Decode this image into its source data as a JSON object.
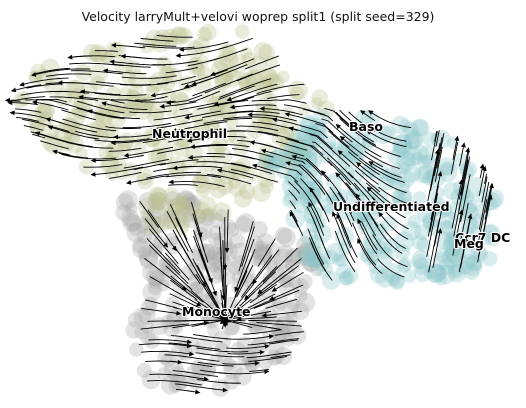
{
  "chart_data": {
    "type": "scatter",
    "title": "Velocity larryMult+velovi woprep split1 (split seed=329)",
    "xlabel": "",
    "ylabel": "",
    "grid": false,
    "legend": "none",
    "overlay": "velocity-streamlines",
    "clusters": [
      {
        "name": "Neutrophil",
        "color": "#bcc08f"
      },
      {
        "name": "Baso",
        "color": "#8cc6cb"
      },
      {
        "name": "Undifferentiated",
        "color": "#8cc6cb"
      },
      {
        "name": "Ccr7 DC",
        "color": "#8cc6cb"
      },
      {
        "name": "Meg",
        "color": "#8cc6cb"
      },
      {
        "name": "Monocyte",
        "color": "#a8a8a8"
      }
    ]
  }
}
